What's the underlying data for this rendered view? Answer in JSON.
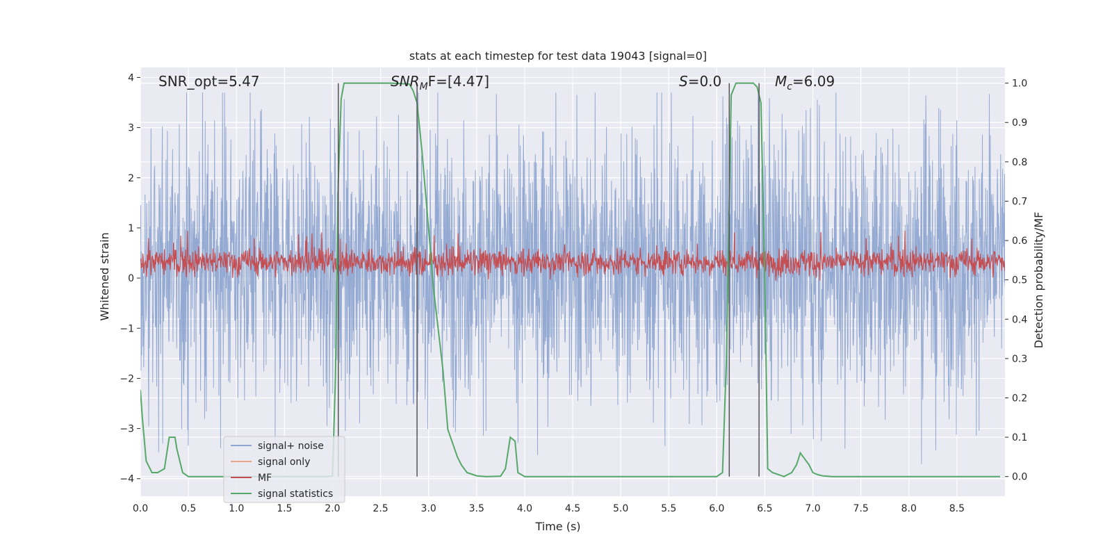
{
  "chart_data": {
    "type": "line",
    "title": "stats at each timestep for test data 19043 [signal=0]",
    "xlabel": "Time (s)",
    "ylabel_left": "Whitened strain",
    "ylabel_right": "Detection probability/MF",
    "xlim": [
      0.0,
      9.0
    ],
    "ylim_left": [
      -4.35,
      4.2
    ],
    "ylim_right": [
      -0.05,
      1.04
    ],
    "grid": true,
    "legend_position": "lower-left",
    "x_ticks": [
      "0.0",
      "0.5",
      "1.0",
      "1.5",
      "2.0",
      "2.5",
      "3.0",
      "3.5",
      "4.0",
      "4.5",
      "5.0",
      "5.5",
      "6.0",
      "6.5",
      "7.0",
      "7.5",
      "8.0",
      "8.5"
    ],
    "y_ticks_left": [
      "4",
      "3",
      "2",
      "1",
      "0",
      "−1",
      "−2",
      "−3",
      "−4"
    ],
    "y_ticks_right": [
      "1.0",
      "0.9",
      "0.8",
      "0.7",
      "0.6",
      "0.5",
      "0.4",
      "0.3",
      "0.2",
      "0.1",
      "0.0"
    ],
    "annotations": {
      "snr_opt": "SNR_opt=5.47",
      "snr_mf_main": "SNR",
      "snr_mf_sub": "M",
      "snr_mf_tail": "F=[4.47]",
      "s_symbol": "S",
      "s_value": "=0.0",
      "mc_symbol": "M",
      "mc_sub": "c",
      "mc_value": "=6.09"
    },
    "vertical_lines_x": [
      2.06,
      2.88,
      6.13,
      6.44
    ],
    "series": [
      {
        "name": "signal+ noise",
        "color": "#8fa6d0",
        "axis": "left",
        "style": "noise band",
        "typical_range": [
          -2.0,
          2.6
        ],
        "peak_range": [
          -3.9,
          3.7
        ]
      },
      {
        "name": "signal only",
        "color": "#e8a58a",
        "axis": "left",
        "values": "none visible"
      },
      {
        "name": "MF",
        "color": "#c44e52",
        "axis": "left",
        "style": "noise band",
        "typical_range": [
          0.05,
          0.6
        ],
        "peak_range": [
          -0.05,
          0.95
        ]
      },
      {
        "name": "signal statistics",
        "color": "#55a868",
        "axis": "right",
        "x": [
          0.0,
          0.02,
          0.06,
          0.12,
          0.18,
          0.25,
          0.3,
          0.36,
          0.38,
          0.44,
          0.5,
          0.6,
          1.0,
          1.5,
          1.9,
          2.0,
          2.03,
          2.06,
          2.09,
          2.12,
          2.2,
          2.4,
          2.6,
          2.8,
          2.84,
          2.88,
          2.93,
          3.0,
          3.05,
          3.15,
          3.2,
          3.3,
          3.34,
          3.4,
          3.5,
          3.6,
          3.75,
          3.8,
          3.85,
          3.9,
          3.93,
          4.0,
          4.1,
          4.5,
          5.0,
          5.5,
          6.0,
          6.06,
          6.1,
          6.15,
          6.2,
          6.25,
          6.3,
          6.38,
          6.42,
          6.46,
          6.5,
          6.53,
          6.58,
          6.7,
          6.78,
          6.83,
          6.87,
          6.9,
          6.96,
          7.0,
          7.05,
          7.1,
          7.2,
          7.5,
          8.0,
          8.5,
          8.95
        ],
        "y": [
          0.22,
          0.15,
          0.04,
          0.01,
          0.01,
          0.02,
          0.1,
          0.1,
          0.07,
          0.01,
          0.0,
          0.0,
          0.0,
          0.0,
          0.0,
          0.001,
          0.25,
          0.75,
          0.96,
          1.0,
          1.0,
          1.0,
          1.0,
          0.998,
          0.98,
          0.95,
          0.83,
          0.63,
          0.48,
          0.27,
          0.12,
          0.05,
          0.03,
          0.01,
          0.002,
          0.0,
          0.001,
          0.02,
          0.1,
          0.09,
          0.01,
          0.0,
          0.0,
          0.0,
          0.0,
          0.0,
          0.0,
          0.01,
          0.3,
          0.97,
          1.0,
          1.0,
          1.0,
          1.0,
          0.99,
          0.95,
          0.5,
          0.02,
          0.01,
          0.0,
          0.01,
          0.03,
          0.06,
          0.05,
          0.03,
          0.01,
          0.005,
          0.002,
          0.0,
          0.0,
          0.0,
          0.0,
          0.0
        ]
      }
    ]
  }
}
